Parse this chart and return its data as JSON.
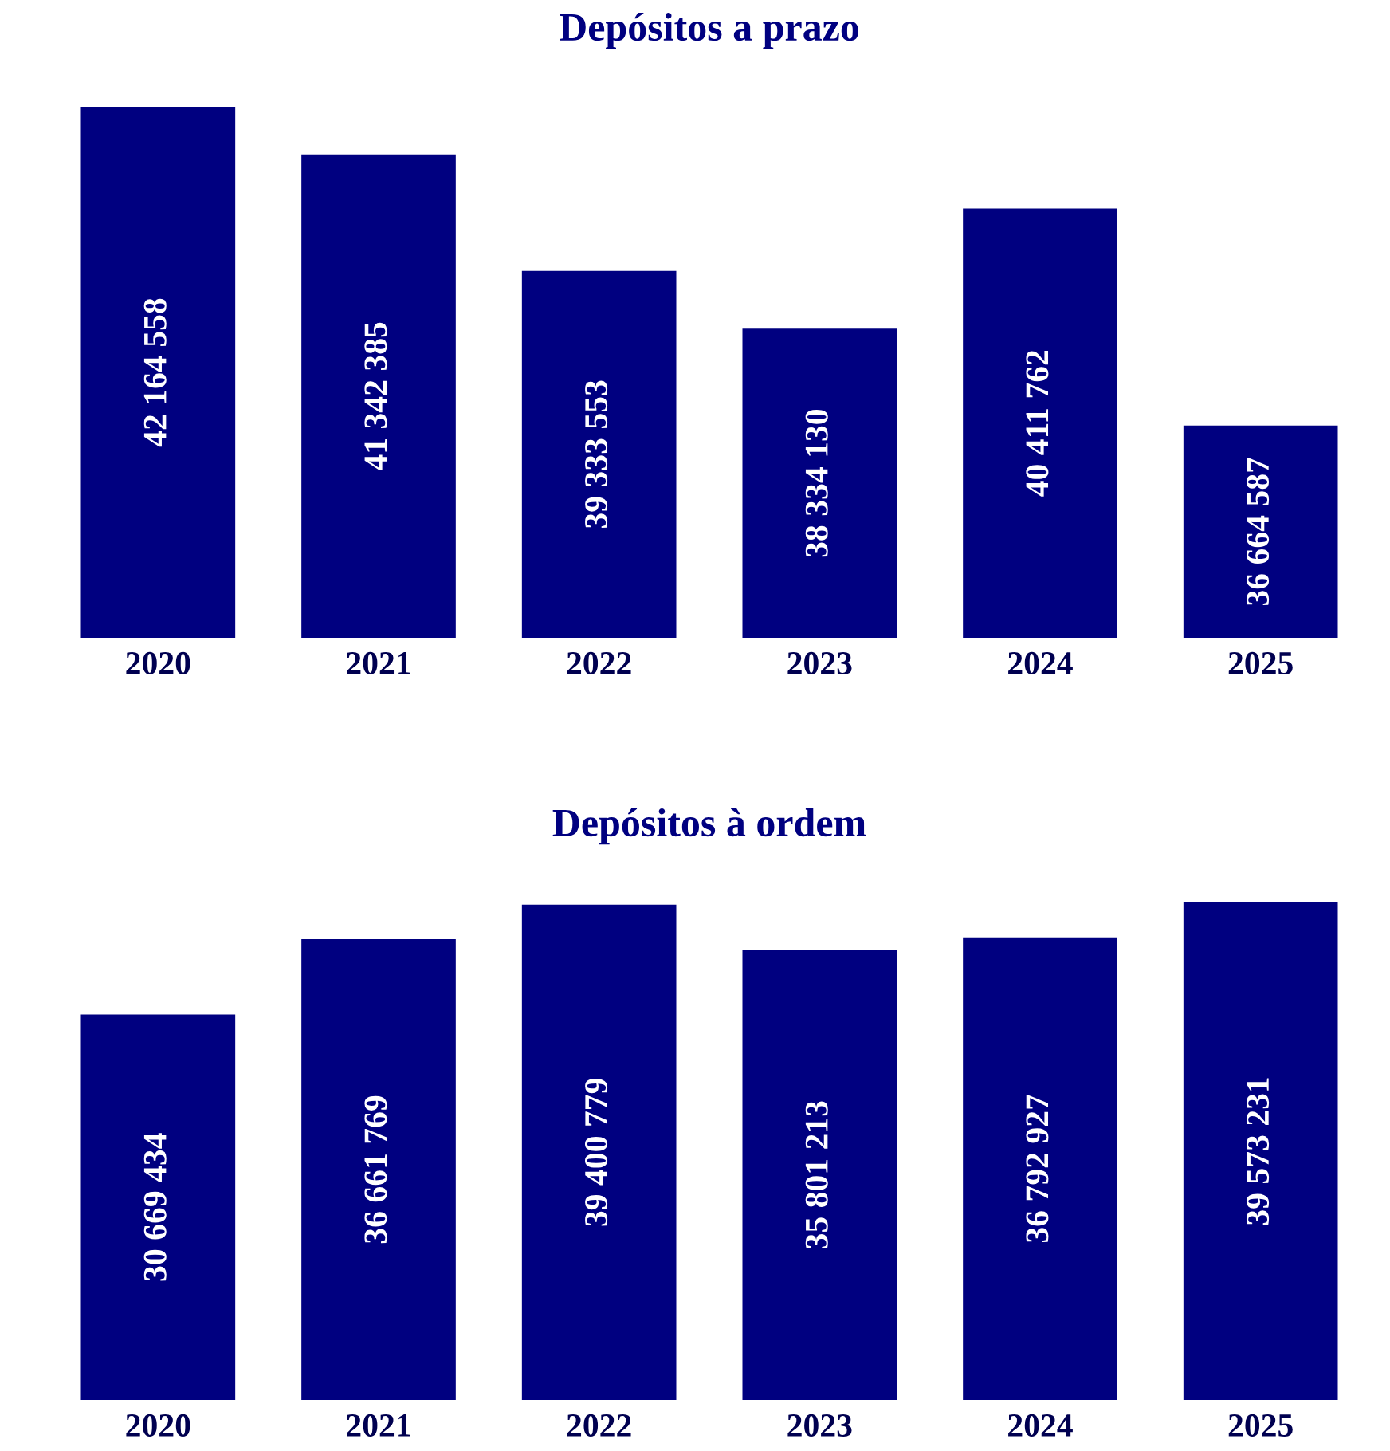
{
  "chart_data": [
    {
      "type": "bar",
      "title": "Depósitos a prazo",
      "categories": [
        "2020",
        "2021",
        "2022",
        "2023",
        "2024",
        "2025"
      ],
      "values": [
        42164558,
        41342385,
        39333553,
        38334130,
        40411762,
        36664587
      ],
      "color": "#000080",
      "data_labels": true,
      "ylim": [
        33000000,
        42164558
      ],
      "tick_labels": "x",
      "grid": false,
      "legend": false
    },
    {
      "type": "bar",
      "title": "Depósitos à ordem",
      "categories": [
        "2020",
        "2021",
        "2022",
        "2023",
        "2024",
        "2025"
      ],
      "values": [
        30669434,
        36661769,
        39400779,
        35801213,
        36792927,
        39573231
      ],
      "color": "#000080",
      "data_labels": true,
      "ylim": [
        0,
        39573231
      ],
      "tick_labels": "x",
      "grid": false,
      "legend": false
    }
  ]
}
